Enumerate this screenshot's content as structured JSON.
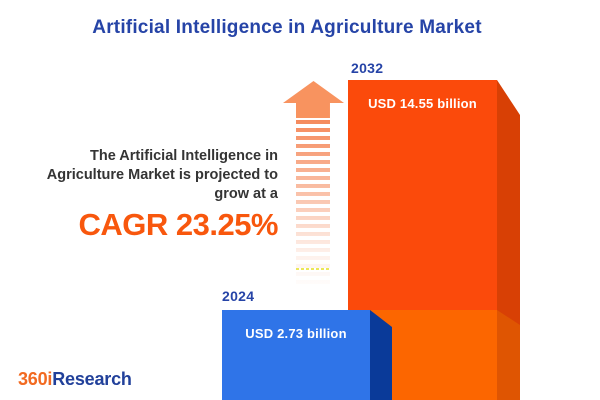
{
  "title": "Artificial Intelligence in Agriculture Market",
  "projection": {
    "line1": "The Artificial Intelligence in",
    "line2": "Agriculture Market is projected to",
    "line3": "grow at a",
    "cagr_label": "CAGR 23.25%"
  },
  "chart_data": {
    "type": "bar",
    "title": "Artificial Intelligence in Agriculture Market",
    "categories": [
      "2024",
      "2032"
    ],
    "values": [
      2.73,
      14.55
    ],
    "unit": "USD billion",
    "value_labels": [
      "USD 2.73 billion",
      "USD 14.55 billion"
    ],
    "cagr_percent": 23.25,
    "grid": false,
    "legend_position": "none",
    "bar_colors": [
      "#2F74E8",
      "#FB4A0B"
    ],
    "bar_side_colors": [
      "#0A3A99",
      "#D84005"
    ]
  },
  "logo": {
    "prefix": "360i",
    "suffix": "Research"
  },
  "colors": {
    "title_blue": "#2644A7",
    "body_text": "#343434",
    "cagr_orange": "#F8570D",
    "arrow_orange": "#F8935F",
    "bar_orange_lower": "#FC6600",
    "bar_orange_lower_side": "#DF5502",
    "background": "#FFFFFF"
  }
}
